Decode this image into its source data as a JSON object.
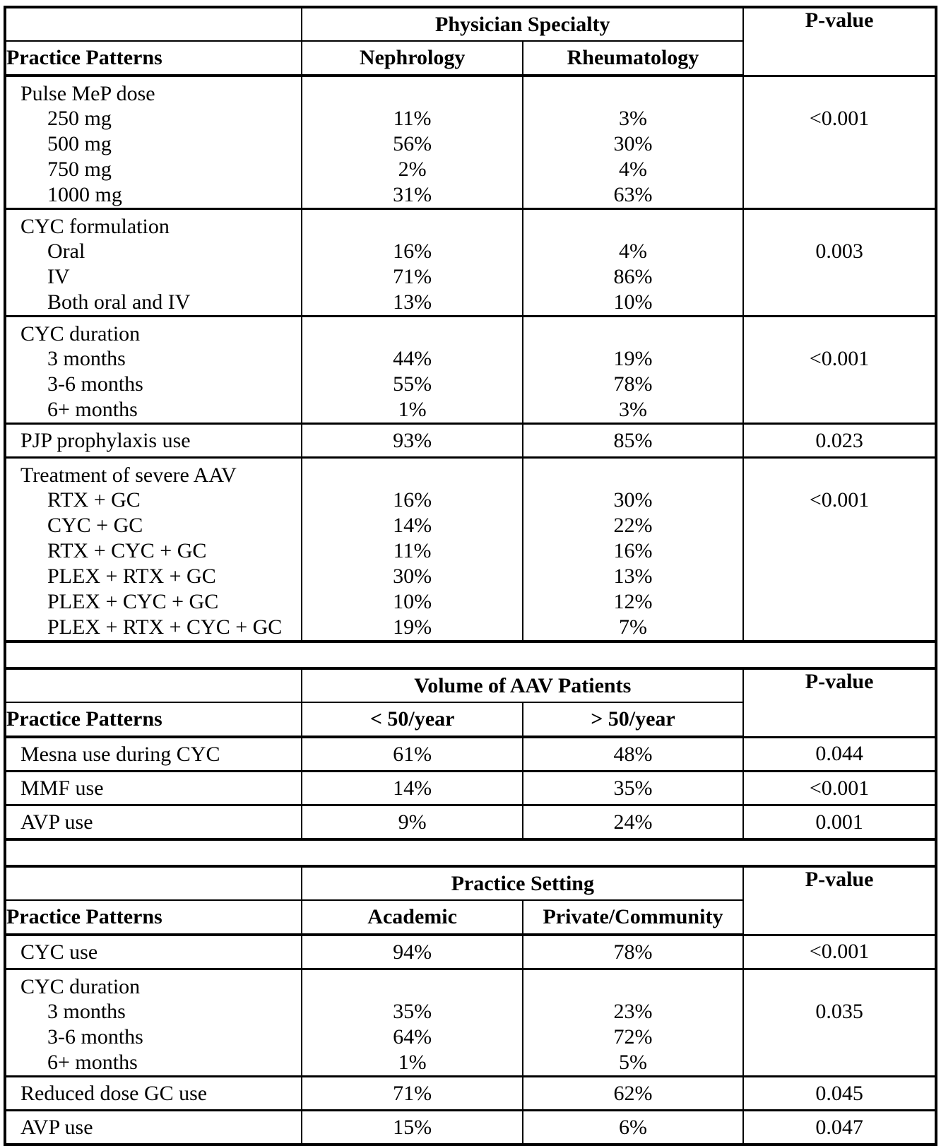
{
  "document": {
    "background": "#ffffff",
    "text_color": "#000000",
    "border_color": "#000000"
  },
  "shared": {
    "practice_patterns_label": "Practice Patterns",
    "pvalue_label": "P-value"
  },
  "tables": [
    {
      "name": "physician-specialty",
      "category_header": "Physician Specialty",
      "columns": [
        "Nephrology",
        "Rheumatology"
      ],
      "rows": [
        {
          "type": "group",
          "label": "Pulse MeP dose",
          "pvalue": "<0.001",
          "items": [
            {
              "label": "250 mg",
              "values": [
                "11%",
                "3%"
              ]
            },
            {
              "label": "500 mg",
              "values": [
                "56%",
                "30%"
              ]
            },
            {
              "label": "750 mg",
              "values": [
                "2%",
                "4%"
              ]
            },
            {
              "label": "1000 mg",
              "values": [
                "31%",
                "63%"
              ]
            }
          ]
        },
        {
          "type": "group",
          "label": "CYC formulation",
          "pvalue": "0.003",
          "items": [
            {
              "label": "Oral",
              "values": [
                "16%",
                "4%"
              ]
            },
            {
              "label": "IV",
              "values": [
                "71%",
                "86%"
              ]
            },
            {
              "label": "Both oral and IV",
              "values": [
                "13%",
                "10%"
              ]
            }
          ]
        },
        {
          "type": "group",
          "label": "CYC duration",
          "pvalue": "<0.001",
          "items": [
            {
              "label": "3 months",
              "values": [
                "44%",
                "19%"
              ]
            },
            {
              "label": "3-6 months",
              "values": [
                "55%",
                "78%"
              ]
            },
            {
              "label": "6+ months",
              "values": [
                "1%",
                "3%"
              ]
            }
          ]
        },
        {
          "type": "single",
          "label": "PJP prophylaxis use",
          "values": [
            "93%",
            "85%"
          ],
          "pvalue": "0.023"
        },
        {
          "type": "group",
          "label": "Treatment of severe AAV",
          "pvalue": "<0.001",
          "items": [
            {
              "label": "RTX + GC",
              "values": [
                "16%",
                "30%"
              ]
            },
            {
              "label": "CYC + GC",
              "values": [
                "14%",
                "22%"
              ]
            },
            {
              "label": "RTX + CYC + GC",
              "values": [
                "11%",
                "16%"
              ]
            },
            {
              "label": "PLEX + RTX + GC",
              "values": [
                "30%",
                "13%"
              ]
            },
            {
              "label": "PLEX + CYC + GC",
              "values": [
                "10%",
                "12%"
              ]
            },
            {
              "label": "PLEX + RTX + CYC + GC",
              "values": [
                "19%",
                "7%"
              ]
            }
          ]
        }
      ]
    },
    {
      "name": "aav-patient-volume",
      "category_header": "Volume of AAV Patients",
      "columns": [
        "< 50/year",
        "> 50/year"
      ],
      "rows": [
        {
          "type": "single",
          "label": "Mesna use during CYC",
          "values": [
            "61%",
            "48%"
          ],
          "pvalue": "0.044"
        },
        {
          "type": "single",
          "label": "MMF use",
          "values": [
            "14%",
            "35%"
          ],
          "pvalue": "<0.001"
        },
        {
          "type": "single",
          "label": "AVP use",
          "values": [
            "9%",
            "24%"
          ],
          "pvalue": "0.001"
        }
      ]
    },
    {
      "name": "practice-setting",
      "category_header": "Practice Setting",
      "columns": [
        "Academic",
        "Private/Community"
      ],
      "rows": [
        {
          "type": "single",
          "label": "CYC use",
          "values": [
            "94%",
            "78%"
          ],
          "pvalue": "<0.001"
        },
        {
          "type": "group",
          "label": "CYC duration",
          "pvalue": "0.035",
          "items": [
            {
              "label": "3 months",
              "values": [
                "35%",
                "23%"
              ]
            },
            {
              "label": "3-6 months",
              "values": [
                "64%",
                "72%"
              ]
            },
            {
              "label": "6+ months",
              "values": [
                "1%",
                "5%"
              ]
            }
          ]
        },
        {
          "type": "single",
          "label": "Reduced dose GC use",
          "values": [
            "71%",
            "62%"
          ],
          "pvalue": "0.045"
        },
        {
          "type": "single",
          "label": "AVP use",
          "values": [
            "15%",
            "6%"
          ],
          "pvalue": "0.047"
        }
      ]
    }
  ]
}
